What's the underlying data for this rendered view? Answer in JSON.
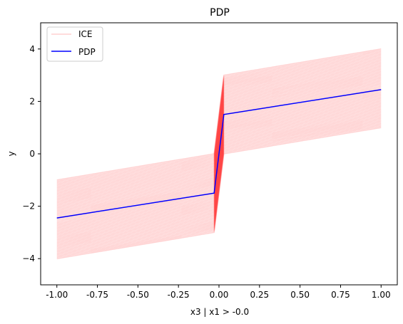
{
  "chart_data": {
    "type": "line",
    "title": "PDP",
    "xlabel": "x3 | x1  > -0.0",
    "ylabel": "y",
    "xlim": [
      -1.1,
      1.1
    ],
    "ylim": [
      -5,
      5
    ],
    "x_ticks": [
      "-1.00",
      "-0.75",
      "-0.50",
      "-0.25",
      "0.00",
      "0.25",
      "0.50",
      "0.75",
      "1.00"
    ],
    "y_ticks": [
      "−4",
      "−2",
      "0",
      "2",
      "4"
    ],
    "grid": false,
    "legend_position": "top-left",
    "legend": [
      {
        "name": "ICE",
        "color": "#ff0000",
        "style": "faint"
      },
      {
        "name": "PDP",
        "color": "#0000ff",
        "style": "solid"
      }
    ],
    "series": [
      {
        "name": "PDP",
        "color": "#0000ff",
        "x": [
          -1.0,
          -0.03,
          0.03,
          1.0
        ],
        "y": [
          -2.45,
          -1.5,
          1.5,
          2.45
        ]
      }
    ],
    "ice": {
      "color": "#ff0000",
      "x": [
        -1.0,
        -0.03,
        0.03,
        1.0
      ],
      "curve_count": 60,
      "left_start_range": [
        -4.0,
        -1.0
      ],
      "left_end_range": [
        -3.0,
        0.0
      ],
      "right_start_range": [
        0.0,
        3.0
      ],
      "right_end_range": [
        1.0,
        4.0
      ]
    }
  }
}
